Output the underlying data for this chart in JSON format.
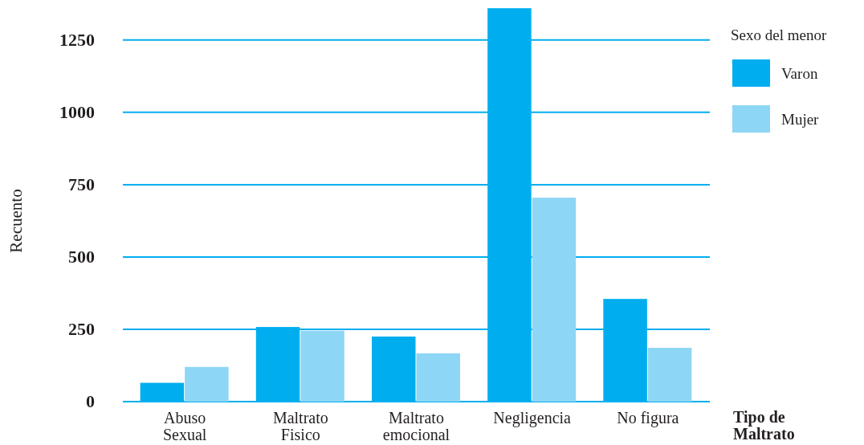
{
  "chart_data": {
    "type": "bar",
    "categories": [
      "Abuso Sexual",
      "Maltrato Fisico",
      "Maltrato emocional",
      "Negligencia",
      "No figura"
    ],
    "series": [
      {
        "name": "Varon",
        "color": "#00aeef",
        "values": [
          65,
          258,
          225,
          1360,
          355
        ]
      },
      {
        "name": "Mujer",
        "color": "#8ed6f6",
        "values": [
          120,
          245,
          167,
          705,
          186
        ]
      }
    ],
    "xlabel": "Tipo de Maltrato",
    "ylabel": "Recuento",
    "legend_title": "Sexo del menor",
    "ylim": [
      0,
      1380
    ],
    "yticks": [
      0,
      250,
      500,
      750,
      1000,
      1250
    ],
    "grid": "y",
    "legend": "top right"
  }
}
